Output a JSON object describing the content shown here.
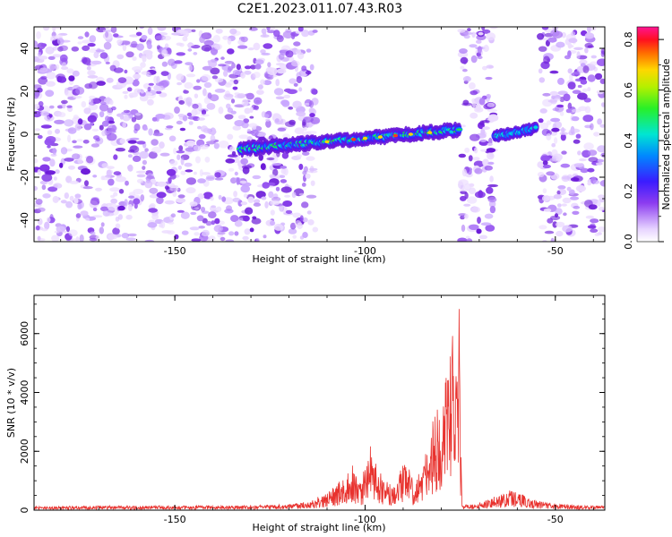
{
  "title": "C2E1.2023.011.07.43.R03",
  "colors": {
    "snr_line": "#e8322e",
    "axis": "#000000",
    "background": "#ffffff"
  },
  "chart_data": [
    {
      "type": "heatmap",
      "xlabel": "Height of straight line (km)",
      "ylabel": "Frequency (Hz)",
      "xlim": [
        -187,
        -37
      ],
      "ylim": [
        -50,
        50
      ],
      "x_ticks": [
        -150,
        -100,
        -50
      ],
      "x_tick_labels": [
        "-150",
        "-100",
        "-50"
      ],
      "y_ticks": [
        -40,
        -20,
        0,
        20,
        40
      ],
      "y_tick_labels": [
        "-40",
        "-20",
        "0",
        "20",
        "40"
      ],
      "colorbar": {
        "label": "Normalized spectral amplitude",
        "range": [
          0,
          0.85
        ],
        "ticks": [
          0,
          0.2,
          0.4,
          0.6,
          0.8
        ],
        "tick_labels": [
          "0.0",
          "0.2",
          "0.4",
          "0.6",
          "0.8"
        ],
        "colormap": "rainbow (white → violet → blue → cyan → green → yellow → red → magenta)"
      },
      "features": [
        {
          "description": "diffuse noise speckle",
          "x_range": [
            -187,
            -113
          ],
          "freq_range": [
            -50,
            50
          ],
          "amplitude": 0.05
        },
        {
          "description": "signal trace (frequency rising with height)",
          "x_range": [
            -133,
            -75
          ],
          "freq_range": [
            -10,
            4
          ],
          "peak_amplitude": 0.8
        },
        {
          "description": "empty gap",
          "x_range": [
            -113,
            -75
          ],
          "freq_range": [
            -50,
            50
          ],
          "amplitude": 0.0
        },
        {
          "description": "noise band",
          "x_range": [
            -75,
            -66
          ],
          "freq_range": [
            -50,
            50
          ],
          "amplitude": 0.05
        },
        {
          "description": "secondary signal segment",
          "x_range": [
            -66,
            -55
          ],
          "freq_range": [
            -3,
            5
          ],
          "peak_amplitude": 0.45
        },
        {
          "description": "noise speckle",
          "x_range": [
            -54,
            -37
          ],
          "freq_range": [
            -50,
            50
          ],
          "amplitude": 0.05
        }
      ]
    },
    {
      "type": "line",
      "xlabel": "Height of straight line (km)",
      "ylabel": "SNR (10 * v/v)",
      "xlim": [
        -187,
        -37
      ],
      "ylim": [
        0,
        7300
      ],
      "x_ticks": [
        -150,
        -100,
        -50
      ],
      "x_tick_labels": [
        "-150",
        "-100",
        "-50"
      ],
      "y_ticks": [
        0,
        2000,
        4000,
        6000
      ],
      "y_tick_labels": [
        "0",
        "2000",
        "4000",
        "6000"
      ],
      "series_envelope": [
        {
          "x": -187,
          "y": 120
        },
        {
          "x": -170,
          "y": 150
        },
        {
          "x": -150,
          "y": 150
        },
        {
          "x": -130,
          "y": 160
        },
        {
          "x": -120,
          "y": 200
        },
        {
          "x": -115,
          "y": 300
        },
        {
          "x": -110,
          "y": 600
        },
        {
          "x": -106,
          "y": 1100
        },
        {
          "x": -103,
          "y": 1600
        },
        {
          "x": -101,
          "y": 900
        },
        {
          "x": -99,
          "y": 2300
        },
        {
          "x": -97,
          "y": 1700
        },
        {
          "x": -95,
          "y": 1000
        },
        {
          "x": -93,
          "y": 900
        },
        {
          "x": -91,
          "y": 1300
        },
        {
          "x": -89,
          "y": 1800
        },
        {
          "x": -87,
          "y": 1000
        },
        {
          "x": -85,
          "y": 1500
        },
        {
          "x": -83,
          "y": 2700
        },
        {
          "x": -82,
          "y": 3200
        },
        {
          "x": -81,
          "y": 3600
        },
        {
          "x": -80,
          "y": 2600
        },
        {
          "x": -79,
          "y": 4300
        },
        {
          "x": -78,
          "y": 5700
        },
        {
          "x": -77,
          "y": 6200
        },
        {
          "x": -76,
          "y": 4500
        },
        {
          "x": -75.3,
          "y": 7300
        },
        {
          "x": -75,
          "y": 3200
        },
        {
          "x": -74.5,
          "y": 150
        },
        {
          "x": -70,
          "y": 250
        },
        {
          "x": -62,
          "y": 700
        },
        {
          "x": -55,
          "y": 350
        },
        {
          "x": -50,
          "y": 200
        },
        {
          "x": -37,
          "y": 150
        }
      ]
    }
  ]
}
